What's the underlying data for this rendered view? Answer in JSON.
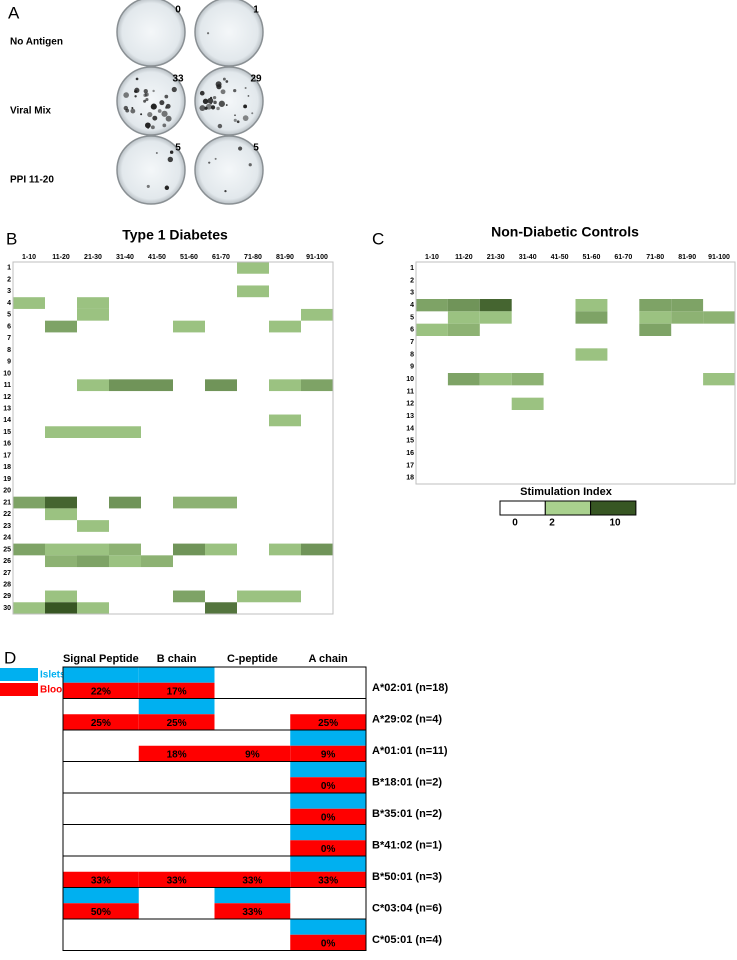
{
  "panel_a": {
    "panel": "A",
    "rows": [
      {
        "name": "No Antigen",
        "counts": [
          0,
          1
        ]
      },
      {
        "name": "Viral Mix",
        "counts": [
          33,
          29
        ]
      },
      {
        "name": "PPI 11-20",
        "counts": [
          5,
          5
        ]
      }
    ]
  },
  "colorbar": {
    "title": "Stimulation Index",
    "ticks": [
      0,
      2,
      10
    ],
    "colors": [
      "#ffffff",
      "#a9d18e",
      "#375623"
    ]
  },
  "chart_data": [
    {
      "type": "heatmap",
      "panel": "B",
      "title": "Type 1 Diabetes",
      "columns": [
        "1-10",
        "11-20",
        "21-30",
        "31-40",
        "41-50",
        "51-60",
        "61-70",
        "71-80",
        "81-90",
        "91-100"
      ],
      "rows": [
        1,
        2,
        3,
        4,
        5,
        6,
        7,
        8,
        9,
        10,
        11,
        12,
        13,
        14,
        15,
        16,
        17,
        18,
        19,
        20,
        21,
        22,
        23,
        24,
        25,
        26,
        27,
        28,
        29,
        30
      ],
      "values": [
        [
          null,
          null,
          null,
          null,
          null,
          null,
          null,
          3,
          null,
          null
        ],
        [
          null,
          null,
          null,
          null,
          null,
          null,
          null,
          null,
          null,
          null
        ],
        [
          null,
          null,
          null,
          null,
          null,
          null,
          null,
          3,
          null,
          null
        ],
        [
          3,
          null,
          3,
          null,
          null,
          null,
          null,
          null,
          null,
          null
        ],
        [
          null,
          null,
          3,
          null,
          null,
          null,
          null,
          null,
          null,
          3
        ],
        [
          null,
          5,
          null,
          null,
          null,
          3,
          null,
          null,
          3,
          null
        ],
        [
          null,
          null,
          null,
          null,
          null,
          null,
          null,
          null,
          null,
          null
        ],
        [
          null,
          null,
          null,
          null,
          null,
          null,
          null,
          null,
          null,
          null
        ],
        [
          null,
          null,
          null,
          null,
          null,
          null,
          null,
          null,
          null,
          null
        ],
        [
          null,
          null,
          null,
          null,
          null,
          null,
          null,
          null,
          null,
          null
        ],
        [
          null,
          null,
          3,
          6,
          6,
          null,
          6,
          null,
          3,
          5
        ],
        [
          null,
          null,
          null,
          null,
          null,
          null,
          null,
          null,
          null,
          null
        ],
        [
          null,
          null,
          null,
          null,
          null,
          null,
          null,
          null,
          null,
          null
        ],
        [
          null,
          null,
          null,
          null,
          null,
          null,
          null,
          null,
          3,
          null
        ],
        [
          null,
          3,
          3,
          3,
          null,
          null,
          null,
          null,
          null,
          null
        ],
        [
          null,
          null,
          null,
          null,
          null,
          null,
          null,
          null,
          null,
          null
        ],
        [
          null,
          null,
          null,
          null,
          null,
          null,
          null,
          null,
          null,
          null
        ],
        [
          null,
          null,
          null,
          null,
          null,
          null,
          null,
          null,
          null,
          null
        ],
        [
          null,
          null,
          null,
          null,
          null,
          null,
          null,
          null,
          null,
          null
        ],
        [
          null,
          null,
          null,
          null,
          null,
          null,
          null,
          null,
          null,
          null
        ],
        [
          5,
          9,
          null,
          6,
          null,
          4,
          4,
          null,
          null,
          null
        ],
        [
          null,
          3,
          null,
          null,
          null,
          null,
          null,
          null,
          null,
          null
        ],
        [
          null,
          null,
          3,
          null,
          null,
          null,
          null,
          null,
          null,
          null
        ],
        [
          null,
          null,
          null,
          null,
          null,
          null,
          null,
          null,
          null,
          null
        ],
        [
          5,
          3,
          3,
          4,
          null,
          6,
          3,
          null,
          3,
          6
        ],
        [
          null,
          4,
          5,
          3,
          4,
          null,
          null,
          null,
          null,
          null
        ],
        [
          null,
          null,
          null,
          null,
          null,
          null,
          null,
          null,
          null,
          null
        ],
        [
          null,
          null,
          null,
          null,
          null,
          null,
          null,
          null,
          null,
          null
        ],
        [
          null,
          3,
          null,
          null,
          null,
          5,
          null,
          3,
          3,
          null
        ],
        [
          3,
          10,
          3,
          null,
          null,
          null,
          8,
          null,
          null,
          null
        ]
      ]
    },
    {
      "type": "heatmap",
      "panel": "C",
      "title": "Non-Diabetic Controls",
      "columns": [
        "1-10",
        "11-20",
        "21-30",
        "31-40",
        "41-50",
        "51-60",
        "61-70",
        "71-80",
        "81-90",
        "91-100"
      ],
      "rows": [
        1,
        2,
        3,
        4,
        5,
        6,
        7,
        8,
        9,
        10,
        11,
        12,
        13,
        14,
        15,
        16,
        17,
        18
      ],
      "values": [
        [
          null,
          null,
          null,
          null,
          null,
          null,
          null,
          null,
          null,
          null
        ],
        [
          null,
          null,
          null,
          null,
          null,
          null,
          null,
          null,
          null,
          null
        ],
        [
          null,
          null,
          null,
          null,
          null,
          null,
          null,
          null,
          null,
          null
        ],
        [
          5,
          6,
          9,
          null,
          null,
          3,
          null,
          5,
          5,
          null
        ],
        [
          null,
          3,
          3,
          null,
          null,
          5,
          null,
          3,
          4,
          4
        ],
        [
          3,
          4,
          null,
          null,
          null,
          null,
          null,
          5,
          null,
          null
        ],
        [
          null,
          null,
          null,
          null,
          null,
          null,
          null,
          null,
          null,
          null
        ],
        [
          null,
          null,
          null,
          null,
          null,
          3,
          null,
          null,
          null,
          null
        ],
        [
          null,
          null,
          null,
          null,
          null,
          null,
          null,
          null,
          null,
          null
        ],
        [
          null,
          5,
          3,
          4,
          null,
          null,
          null,
          null,
          null,
          3
        ],
        [
          null,
          null,
          null,
          null,
          null,
          null,
          null,
          null,
          null,
          null
        ],
        [
          null,
          null,
          null,
          3,
          null,
          null,
          null,
          null,
          null,
          null
        ],
        [
          null,
          null,
          null,
          null,
          null,
          null,
          null,
          null,
          null,
          null
        ],
        [
          null,
          null,
          null,
          null,
          null,
          null,
          null,
          null,
          null,
          null
        ],
        [
          null,
          null,
          null,
          null,
          null,
          null,
          null,
          null,
          null,
          null
        ],
        [
          null,
          null,
          null,
          null,
          null,
          null,
          null,
          null,
          null,
          null
        ],
        [
          null,
          null,
          null,
          null,
          null,
          null,
          null,
          null,
          null,
          null
        ],
        [
          null,
          null,
          null,
          null,
          null,
          null,
          null,
          null,
          null,
          null
        ]
      ]
    }
  ],
  "panel_d": {
    "panel": "D",
    "columns": [
      "Signal Peptide",
      "B chain",
      "C-peptide",
      "A chain"
    ],
    "legend": [
      {
        "name": "Islets",
        "color": "#00b0f0"
      },
      {
        "name": "Blood",
        "color": "#ff0000"
      }
    ],
    "rows": [
      {
        "allele": "A*02:01 (n=18)",
        "islets": [
          true,
          true,
          false,
          false
        ],
        "blood": [
          22,
          17,
          null,
          null
        ],
        "blood_labels": [
          "22%",
          "17%",
          null,
          null
        ]
      },
      {
        "allele": "A*29:02 (n=4)",
        "islets": [
          false,
          true,
          false,
          false
        ],
        "blood": [
          25,
          25,
          null,
          25
        ],
        "blood_labels": [
          "25%",
          "25%",
          null,
          "25%"
        ]
      },
      {
        "allele": "A*01:01 (n=11)",
        "islets": [
          false,
          false,
          false,
          true
        ],
        "blood": [
          null,
          18,
          9,
          9
        ],
        "blood_labels": [
          null,
          "18%",
          "9%",
          "9%"
        ]
      },
      {
        "allele": "B*18:01 (n=2)",
        "islets": [
          false,
          false,
          false,
          true
        ],
        "blood": [
          null,
          null,
          null,
          0
        ],
        "blood_labels": [
          null,
          null,
          null,
          "0%"
        ]
      },
      {
        "allele": "B*35:01 (n=2)",
        "islets": [
          false,
          false,
          false,
          true
        ],
        "blood": [
          null,
          null,
          null,
          0
        ],
        "blood_labels": [
          null,
          null,
          null,
          "0%"
        ]
      },
      {
        "allele": "B*41:02 (n=1)",
        "islets": [
          false,
          false,
          false,
          true
        ],
        "blood": [
          null,
          null,
          null,
          0
        ],
        "blood_labels": [
          null,
          null,
          null,
          "0%"
        ]
      },
      {
        "allele": "B*50:01 (n=3)",
        "islets": [
          false,
          false,
          false,
          true
        ],
        "blood": [
          33,
          33,
          33,
          33
        ],
        "blood_labels": [
          "33%",
          "33%",
          "33%",
          "33%"
        ]
      },
      {
        "allele": "C*03:04 (n=6)",
        "islets": [
          true,
          false,
          true,
          false
        ],
        "blood": [
          50,
          null,
          33,
          null
        ],
        "blood_labels": [
          "50%",
          null,
          "33%",
          null
        ]
      },
      {
        "allele": "C*05:01 (n=4)",
        "islets": [
          false,
          false,
          false,
          true
        ],
        "blood": [
          null,
          null,
          null,
          0
        ],
        "blood_labels": [
          null,
          null,
          null,
          "0%"
        ]
      }
    ]
  }
}
